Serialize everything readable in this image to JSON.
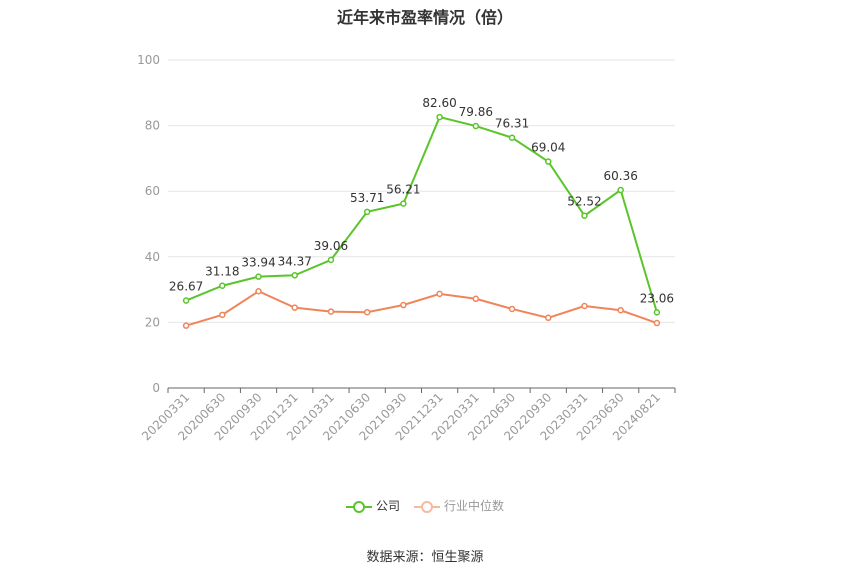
{
  "chart_data": {
    "type": "line",
    "title": "近年来市盈率情况（倍）",
    "categories": [
      "20200331",
      "20200630",
      "20200930",
      "20201231",
      "20210331",
      "20210630",
      "20210930",
      "20211231",
      "20220331",
      "20220630",
      "20220930",
      "20230331",
      "20230630",
      "20240821"
    ],
    "ylim": [
      0,
      100
    ],
    "yticks": [
      0,
      20,
      40,
      60,
      80,
      100
    ],
    "grid": true,
    "legend_position": "bottom",
    "series": [
      {
        "name": "公司",
        "color": "#5ac52a",
        "values": [
          26.67,
          31.18,
          33.94,
          34.37,
          39.06,
          53.71,
          56.21,
          82.6,
          79.86,
          76.31,
          69.04,
          52.52,
          60.36,
          23.06
        ],
        "labels": [
          "26.67",
          "31.18",
          "33.94",
          "34.37",
          "39.06",
          "53.71",
          "56.21",
          "82.60",
          "79.86",
          "76.31",
          "69.04",
          "52.52",
          "60.36",
          "23.06"
        ]
      },
      {
        "name": "行业中位数",
        "color": "#f0845a",
        "values": [
          19.0,
          22.3,
          29.5,
          24.5,
          23.3,
          23.1,
          25.3,
          28.7,
          27.2,
          24.1,
          21.4,
          25.0,
          23.7,
          19.8
        ]
      }
    ]
  },
  "legend": {
    "company": "公司",
    "industry": "行业中位数"
  },
  "source": "数据来源：恒生聚源"
}
